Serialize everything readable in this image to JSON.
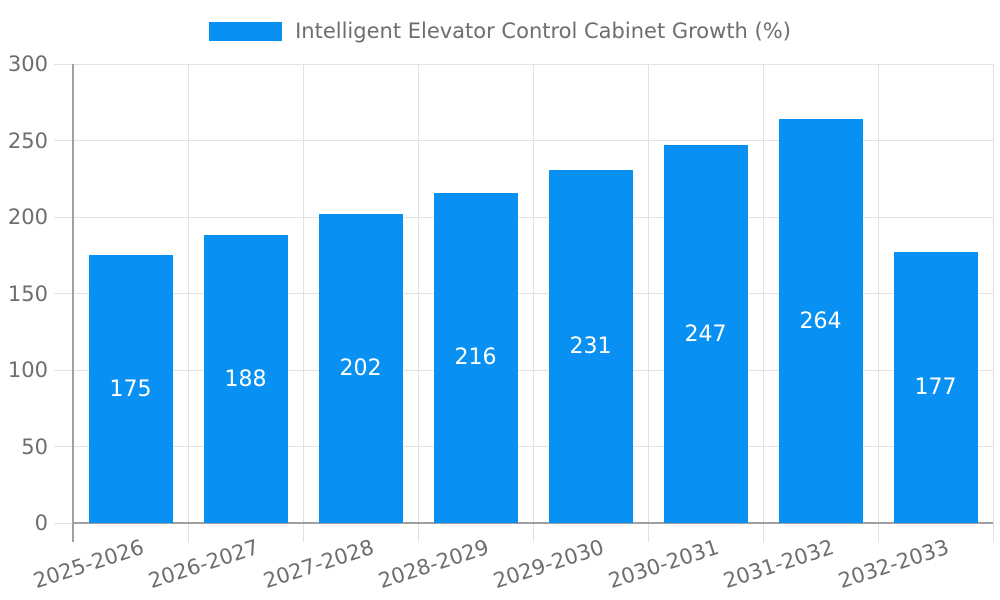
{
  "legend": {
    "label": "Intelligent Elevator Control Cabinet Growth (%)"
  },
  "chart_data": {
    "type": "bar",
    "categories": [
      "2025-2026",
      "2026-2027",
      "2027-2028",
      "2028-2029",
      "2029-2030",
      "2030-2031",
      "2031-2032",
      "2032-2033"
    ],
    "series": [
      {
        "name": "Intelligent Elevator Control Cabinet Growth (%)",
        "values": [
          175,
          188,
          202,
          216,
          231,
          247,
          264,
          177
        ]
      }
    ],
    "values": [
      175,
      188,
      202,
      216,
      231,
      247,
      264,
      177
    ],
    "bar_labels": [
      "175",
      "188",
      "202",
      "216",
      "231",
      "247",
      "264",
      "177"
    ],
    "xlabel": "",
    "ylabel": "",
    "ylim": [
      0,
      300
    ],
    "yticks": [
      0,
      50,
      100,
      150,
      200,
      250,
      300
    ],
    "grid": true,
    "legend_position": "top-center",
    "x_tick_rotation_deg": -18,
    "bar_color": "#0890F2",
    "bar_label_color": "#FFFFFF",
    "grid_color": "#E2E2E2",
    "axis_color": "#A0A0A0",
    "text_color": "#6E6E6E"
  }
}
